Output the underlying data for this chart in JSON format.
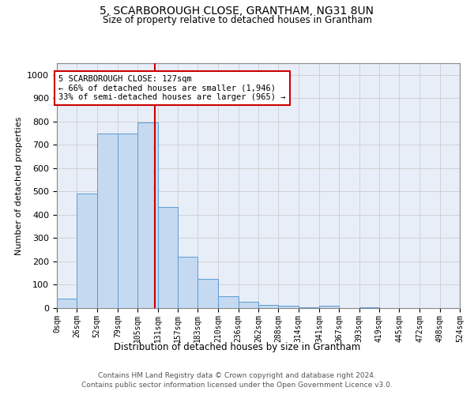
{
  "title": "5, SCARBOROUGH CLOSE, GRANTHAM, NG31 8UN",
  "subtitle": "Size of property relative to detached houses in Grantham",
  "xlabel": "Distribution of detached houses by size in Grantham",
  "ylabel": "Number of detached properties",
  "bar_color": "#c5d9f0",
  "bar_edge_color": "#5b9bd5",
  "bar_values": [
    40,
    490,
    750,
    750,
    795,
    435,
    220,
    125,
    50,
    27,
    15,
    10,
    5,
    10,
    0,
    5,
    0,
    0,
    0,
    0
  ],
  "bin_edges": [
    0,
    26,
    52,
    79,
    105,
    131,
    157,
    183,
    210,
    236,
    262,
    288,
    314,
    341,
    367,
    393,
    419,
    445,
    472,
    498,
    524
  ],
  "bin_labels": [
    "0sqm",
    "26sqm",
    "52sqm",
    "79sqm",
    "105sqm",
    "131sqm",
    "157sqm",
    "183sqm",
    "210sqm",
    "236sqm",
    "262sqm",
    "288sqm",
    "314sqm",
    "341sqm",
    "367sqm",
    "393sqm",
    "419sqm",
    "445sqm",
    "472sqm",
    "498sqm",
    "524sqm"
  ],
  "property_size": 127,
  "property_line_color": "#cc0000",
  "annotation_text": "5 SCARBOROUGH CLOSE: 127sqm\n← 66% of detached houses are smaller (1,946)\n33% of semi-detached houses are larger (965) →",
  "annotation_box_color": "#ffffff",
  "annotation_box_edge": "#cc0000",
  "ylim": [
    0,
    1050
  ],
  "yticks": [
    0,
    100,
    200,
    300,
    400,
    500,
    600,
    700,
    800,
    900,
    1000
  ],
  "grid_color": "#cccccc",
  "background_color": "#e8eef8",
  "footer_line1": "Contains HM Land Registry data © Crown copyright and database right 2024.",
  "footer_line2": "Contains public sector information licensed under the Open Government Licence v3.0."
}
